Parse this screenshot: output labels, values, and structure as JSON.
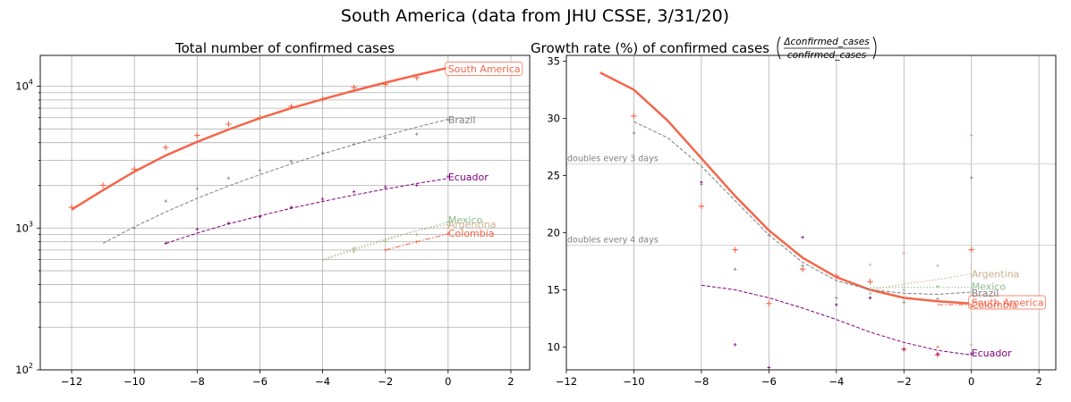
{
  "suptitle": "South America (data from JHU CSSE, 3/31/20)",
  "colors": {
    "South America": "#f4664a",
    "Brazil": "#808080",
    "Ecuador": "#800080",
    "Mexico": "#8fbc8f",
    "Argentina": "#c8b08a",
    "Colombia": "#f4664a",
    "grid": "#b0b0b0"
  },
  "chart_data": [
    {
      "type": "line",
      "title": "Total number of confirmed cases",
      "yscale": "log",
      "xlim": [
        -13,
        2.6
      ],
      "ylim": [
        100,
        16500
      ],
      "xticks": [
        -12,
        -10,
        -8,
        -6,
        -4,
        -2,
        0,
        2
      ],
      "xtick_labels": [
        "−12",
        "−10",
        "−8",
        "−6",
        "−4",
        "−2",
        "0",
        "2"
      ],
      "yticks": [
        100,
        1000,
        10000
      ],
      "series": [
        {
          "name": "South America",
          "style": "solid",
          "width": 2.5,
          "boxed": true,
          "fit": {
            "x": [
              -12,
              -11,
              -10,
              -9,
              -8,
              -7,
              -6,
              -5,
              -4,
              -3,
              -2,
              -1,
              0
            ],
            "y": [
              1350,
              1850,
              2500,
              3250,
              4050,
              4950,
              5950,
              7000,
              8100,
              9300,
              10600,
              12000,
              13500
            ]
          },
          "points": {
            "x": [
              -12,
              -11,
              -10,
              -9,
              -8,
              -7,
              -6,
              -5,
              -4,
              -3,
              -2,
              -1,
              0
            ],
            "y": [
              1400,
              2000,
              2600,
              3700,
              4500,
              5400,
              6000,
              7200,
              8100,
              9800,
              10300,
              11500,
              13500
            ]
          },
          "label_x": 0,
          "label_y": 13300
        },
        {
          "name": "Brazil",
          "style": "dashed",
          "width": 1,
          "fit": {
            "x": [
              -11,
              -10,
              -9,
              -8,
              -7,
              -6,
              -5,
              -4,
              -3,
              -2,
              -1,
              0
            ],
            "y": [
              780,
              1020,
              1300,
              1620,
              1980,
              2380,
              2830,
              3330,
              3880,
              4480,
              5150,
              5850
            ]
          },
          "points": {
            "x": [
              -10,
              -9,
              -8,
              -7,
              -6,
              -5,
              -4,
              -3,
              -2,
              -1,
              0
            ],
            "y": [
              1000,
              1550,
              1900,
              2250,
              2550,
              2950,
              3400,
              3900,
              4300,
              4600,
              5800
            ]
          },
          "label_x": 0,
          "label_y": 5800
        },
        {
          "name": "Ecuador",
          "style": "dashed",
          "width": 1,
          "fit": {
            "x": [
              -9,
              -8,
              -7,
              -6,
              -5,
              -4,
              -3,
              -2,
              -1,
              0
            ],
            "y": [
              780,
              920,
              1070,
              1220,
              1380,
              1540,
              1710,
              1880,
              2060,
              2240
            ]
          },
          "points": {
            "x": [
              -9,
              -8,
              -7,
              -6,
              -5,
              -4,
              -3,
              -2,
              -1,
              0
            ],
            "y": [
              780,
              980,
              1080,
              1200,
              1400,
              1600,
              1800,
              1950,
              2000,
              2300
            ]
          },
          "label_x": 0,
          "label_y": 2300
        },
        {
          "name": "Mexico",
          "style": "dotted",
          "width": 1,
          "fit": {
            "x": [
              -4,
              -3,
              -2,
              -1,
              0
            ],
            "y": [
              590,
              700,
              820,
              960,
              1100
            ]
          },
          "points": {
            "x": [
              -3,
              -2,
              -1,
              0
            ],
            "y": [
              720,
              800,
              900,
              1100
            ]
          },
          "label_x": 0,
          "label_y": 1140
        },
        {
          "name": "Argentina",
          "style": "dotted",
          "width": 1,
          "fit": {
            "x": [
              -4,
              -3,
              -2,
              -1,
              0
            ],
            "y": [
              600,
              720,
              840,
              960,
              1060
            ]
          },
          "points": {
            "x": [
              -3,
              -2,
              -1,
              0
            ],
            "y": [
              680,
              820,
              900,
              1050
            ]
          },
          "label_x": 0,
          "label_y": 1060
        },
        {
          "name": "Colombia",
          "style": "dashdot",
          "width": 1,
          "fit": {
            "x": [
              -2,
              -1,
              0
            ],
            "y": [
              700,
              800,
              910
            ]
          },
          "points": {
            "x": [
              -2,
              -1,
              0
            ],
            "y": [
              700,
              800,
              910
            ]
          },
          "label_x": 0,
          "label_y": 920
        }
      ]
    },
    {
      "type": "line",
      "title": "Growth rate (%) of confirmed cases",
      "title_fraction": {
        "numerator": "Δconfirmed_cases",
        "denominator": "confirmed_cases"
      },
      "xlim": [
        -12,
        2.5
      ],
      "ylim": [
        8,
        35.5
      ],
      "xticks": [
        -12,
        -10,
        -8,
        -6,
        -4,
        -2,
        0,
        2
      ],
      "xtick_labels": [
        "−12",
        "−10",
        "−8",
        "−6",
        "−4",
        "−2",
        "0",
        "2"
      ],
      "yticks": [
        10,
        15,
        20,
        25,
        30,
        35
      ],
      "ytick_labels": [
        "10",
        "15",
        "20",
        "25",
        "30",
        "35"
      ],
      "reference_lines": [
        {
          "y": 26,
          "label": "doubles every 3 days"
        },
        {
          "y": 18.9,
          "label": "doubles every 4 days"
        }
      ],
      "series": [
        {
          "name": "South America",
          "style": "solid",
          "width": 2.5,
          "boxed": true,
          "fit": {
            "x": [
              -11,
              -10,
              -9,
              -8,
              -7,
              -6,
              -5,
              -4,
              -3,
              -2,
              -1,
              0
            ],
            "y": [
              34,
              32.5,
              29.8,
              26.5,
              23.2,
              20.2,
              17.8,
              16.1,
              15.0,
              14.3,
              14.0,
              13.8
            ]
          },
          "points": {
            "x": [
              -10,
              -8,
              -7,
              -6,
              -5,
              -4,
              -3,
              -2,
              -1,
              0
            ],
            "y": [
              30.2,
              22.3,
              18.5,
              13.8,
              16.8,
              16.2,
              15.7,
              9.8,
              9.3,
              18.5
            ]
          },
          "label_x": 0,
          "label_y": 13.9
        },
        {
          "name": "Brazil",
          "style": "dashed",
          "width": 1,
          "fit": {
            "x": [
              -10,
              -9,
              -8,
              -7,
              -6,
              -5,
              -4,
              -3,
              -2,
              -1,
              0
            ],
            "y": [
              29.7,
              28.3,
              25.8,
              22.8,
              19.8,
              17.4,
              15.8,
              15.0,
              14.7,
              14.6,
              14.8
            ]
          },
          "points": {
            "x": [
              -10,
              -8,
              -7,
              -6,
              -5,
              -4,
              -3,
              -2,
              -1,
              0
            ],
            "y": [
              28.7,
              24.2,
              16.8,
              19.8,
              17.1,
              14.3,
              14.3,
              13.9,
              14.2,
              24.8
            ]
          },
          "label_x": 0,
          "label_y": 14.7
        },
        {
          "name": "Ecuador",
          "style": "dashed",
          "width": 1,
          "fit": {
            "x": [
              -8,
              -7,
              -6,
              -5,
              -4,
              -3,
              -2,
              -1,
              0
            ],
            "y": [
              15.4,
              15.0,
              14.3,
              13.4,
              12.4,
              11.3,
              10.4,
              9.7,
              9.3
            ]
          },
          "points": {
            "x": [
              -8,
              -7,
              -6,
              -5,
              -4,
              -3,
              -2,
              -1,
              0
            ],
            "y": [
              24.4,
              10.2,
              8.2,
              19.6,
              13.7,
              14.3,
              9.8,
              9.4,
              9.4
            ]
          },
          "label_x": 0,
          "label_y": 9.5
        },
        {
          "name": "Mexico",
          "style": "dotted",
          "width": 1,
          "fit": {
            "x": [
              -3,
              -2,
              -1,
              0
            ],
            "y": [
              15.2,
              15.2,
              15.2,
              15.2
            ]
          },
          "points": {
            "x": [
              -3,
              -2,
              -1,
              0
            ],
            "y": [
              14.7,
              15.0,
              15.3,
              28.5
            ]
          },
          "label_x": 0,
          "label_y": 15.3
        },
        {
          "name": "Argentina",
          "style": "dotted",
          "width": 1,
          "fit": {
            "x": [
              -3,
              -2,
              -1,
              0
            ],
            "y": [
              15.0,
              15.5,
              15.9,
              16.4
            ]
          },
          "points": {
            "x": [
              -3,
              -2,
              -1,
              0
            ],
            "y": [
              17.2,
              18.2,
              17.1,
              10.2
            ]
          },
          "label_x": 0,
          "label_y": 16.4
        },
        {
          "name": "Colombia",
          "style": "dashdot",
          "width": 1,
          "fit": {
            "x": [
              -1,
              0
            ],
            "y": [
              13.7,
              13.7
            ]
          },
          "points": {
            "x": [
              -1,
              0
            ],
            "y": [
              10.0,
              13.5
            ]
          },
          "label_x": 0,
          "label_y": 13.7
        }
      ]
    }
  ]
}
